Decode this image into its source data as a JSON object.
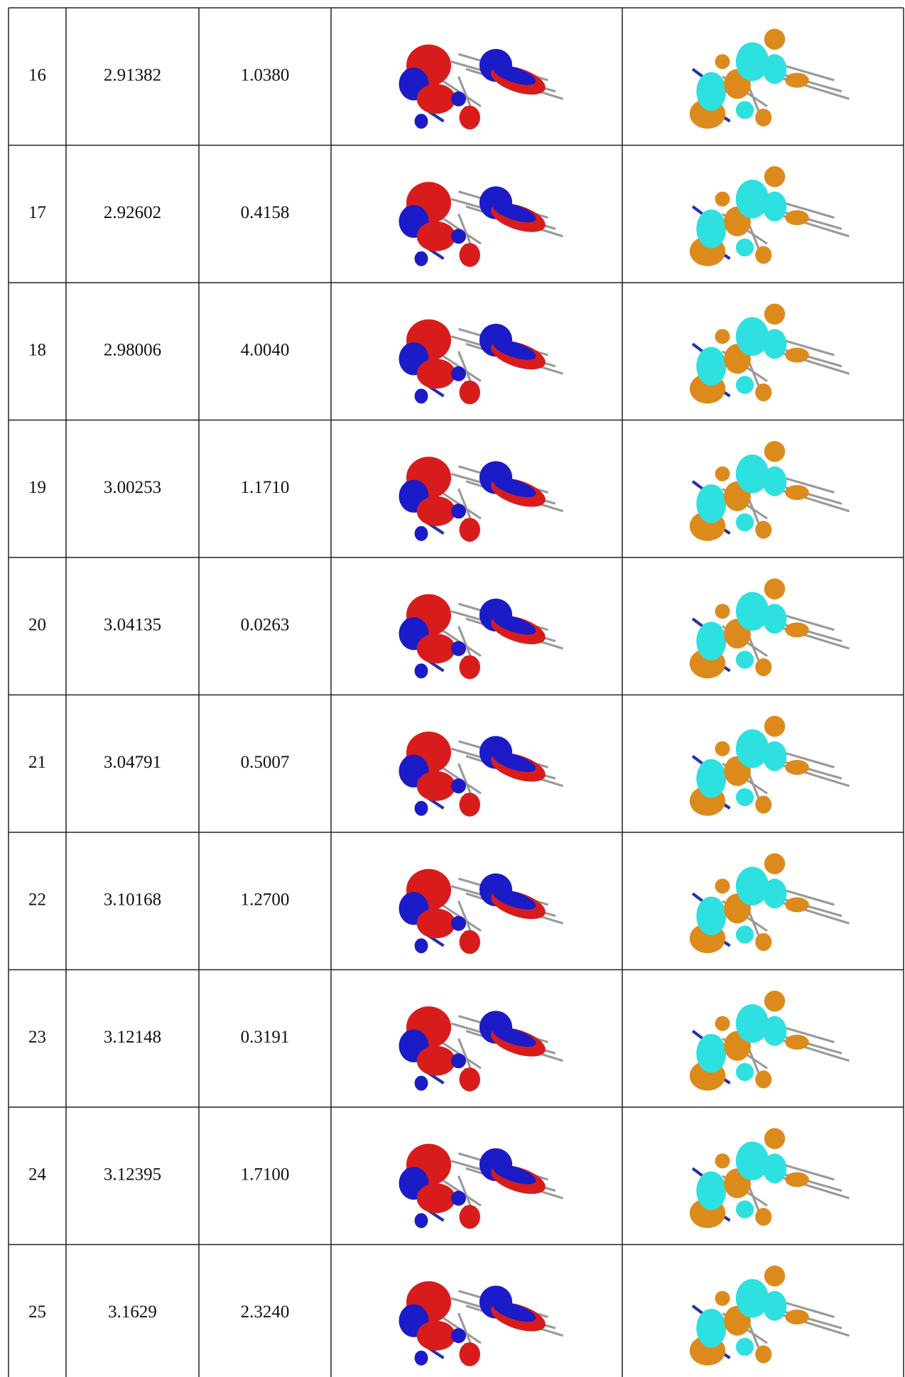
{
  "table": {
    "rows": [
      [
        "16",
        "2.91382",
        "1.0380"
      ],
      [
        "17",
        "2.92602",
        "0.4158"
      ],
      [
        "18",
        "2.98006",
        "4.0040"
      ],
      [
        "19",
        "3.00253",
        "1.1710"
      ],
      [
        "20",
        "3.04135",
        "0.0263"
      ],
      [
        "21",
        "3.04791",
        "0.5007"
      ],
      [
        "22",
        "3.10168",
        "1.2700"
      ],
      [
        "23",
        "3.12148",
        "0.3191"
      ],
      [
        "24",
        "3.12395",
        "1.7100"
      ],
      [
        "25",
        "3.1629",
        "2.3240"
      ]
    ]
  }
}
